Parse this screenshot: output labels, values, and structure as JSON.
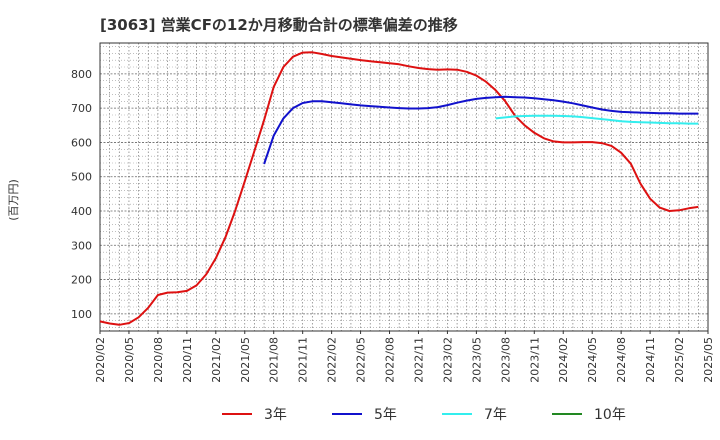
{
  "chart_data": {
    "type": "line",
    "title": "[3063]  営業CFの12か月移動合計の標準偏差の推移",
    "ylabel": "(百万円)",
    "xlabel": "",
    "ylim": [
      50,
      890
    ],
    "yticks": [
      100,
      200,
      300,
      400,
      500,
      600,
      700,
      800
    ],
    "x_tick_labels": [
      "2020/02",
      "2020/05",
      "2020/08",
      "2020/11",
      "2021/02",
      "2021/05",
      "2021/08",
      "2021/11",
      "2022/02",
      "2022/05",
      "2022/08",
      "2022/11",
      "2023/02",
      "2023/05",
      "2023/08",
      "2023/11",
      "2024/02",
      "2024/05",
      "2024/08",
      "2024/11",
      "2025/02",
      "2025/05"
    ],
    "x_range_months": [
      0,
      63
    ],
    "grid": true,
    "legend_position": "bottom",
    "series": [
      {
        "name": "3年",
        "color": "#dd1111",
        "points": [
          [
            0,
            78
          ],
          [
            1,
            72
          ],
          [
            2,
            68
          ],
          [
            3,
            73
          ],
          [
            4,
            90
          ],
          [
            5,
            118
          ],
          [
            6,
            155
          ],
          [
            7,
            162
          ],
          [
            8,
            163
          ],
          [
            9,
            167
          ],
          [
            10,
            183
          ],
          [
            11,
            215
          ],
          [
            12,
            262
          ],
          [
            13,
            324
          ],
          [
            14,
            400
          ],
          [
            15,
            487
          ],
          [
            16,
            575
          ],
          [
            17,
            665
          ],
          [
            18,
            762
          ],
          [
            19,
            820
          ],
          [
            20,
            850
          ],
          [
            21,
            862
          ],
          [
            22,
            863
          ],
          [
            23,
            858
          ],
          [
            24,
            852
          ],
          [
            25,
            848
          ],
          [
            26,
            844
          ],
          [
            27,
            840
          ],
          [
            28,
            837
          ],
          [
            29,
            834
          ],
          [
            30,
            831
          ],
          [
            31,
            828
          ],
          [
            32,
            822
          ],
          [
            33,
            817
          ],
          [
            34,
            814
          ],
          [
            35,
            812
          ],
          [
            36,
            813
          ],
          [
            37,
            812
          ],
          [
            38,
            806
          ],
          [
            39,
            795
          ],
          [
            40,
            777
          ],
          [
            41,
            752
          ],
          [
            42,
            720
          ],
          [
            43,
            678
          ],
          [
            44,
            650
          ],
          [
            45,
            628
          ],
          [
            46,
            612
          ],
          [
            47,
            603
          ],
          [
            48,
            600
          ],
          [
            49,
            600
          ],
          [
            50,
            601
          ],
          [
            51,
            601
          ],
          [
            52,
            598
          ],
          [
            53,
            590
          ],
          [
            54,
            570
          ],
          [
            55,
            538
          ],
          [
            56,
            480
          ],
          [
            57,
            436
          ],
          [
            58,
            410
          ],
          [
            59,
            400
          ],
          [
            60,
            402
          ],
          [
            61,
            408
          ],
          [
            62,
            412
          ]
        ]
      },
      {
        "name": "5年",
        "color": "#1111cc",
        "points": [
          [
            17,
            537
          ],
          [
            18,
            620
          ],
          [
            19,
            670
          ],
          [
            20,
            700
          ],
          [
            21,
            715
          ],
          [
            22,
            720
          ],
          [
            23,
            720
          ],
          [
            24,
            717
          ],
          [
            25,
            714
          ],
          [
            26,
            711
          ],
          [
            27,
            708
          ],
          [
            28,
            706
          ],
          [
            29,
            704
          ],
          [
            30,
            702
          ],
          [
            31,
            700
          ],
          [
            32,
            699
          ],
          [
            33,
            699
          ],
          [
            34,
            700
          ],
          [
            35,
            703
          ],
          [
            36,
            709
          ],
          [
            37,
            716
          ],
          [
            38,
            722
          ],
          [
            39,
            727
          ],
          [
            40,
            730
          ],
          [
            41,
            732
          ],
          [
            42,
            733
          ],
          [
            43,
            732
          ],
          [
            44,
            731
          ],
          [
            45,
            729
          ],
          [
            46,
            726
          ],
          [
            47,
            723
          ],
          [
            48,
            719
          ],
          [
            49,
            714
          ],
          [
            50,
            708
          ],
          [
            51,
            702
          ],
          [
            52,
            696
          ],
          [
            53,
            692
          ],
          [
            54,
            689
          ],
          [
            55,
            688
          ],
          [
            56,
            687
          ],
          [
            57,
            686
          ],
          [
            58,
            685
          ],
          [
            59,
            685
          ],
          [
            60,
            684
          ],
          [
            61,
            684
          ],
          [
            62,
            684
          ]
        ]
      },
      {
        "name": "7年",
        "color": "#33eeee",
        "points": [
          [
            41,
            670
          ],
          [
            42,
            673
          ],
          [
            43,
            676
          ],
          [
            44,
            677
          ],
          [
            45,
            678
          ],
          [
            46,
            678
          ],
          [
            47,
            678
          ],
          [
            48,
            677
          ],
          [
            49,
            676
          ],
          [
            50,
            674
          ],
          [
            51,
            671
          ],
          [
            52,
            668
          ],
          [
            53,
            665
          ],
          [
            54,
            662
          ],
          [
            55,
            660
          ],
          [
            56,
            659
          ],
          [
            57,
            658
          ],
          [
            58,
            657
          ],
          [
            59,
            656
          ],
          [
            60,
            656
          ],
          [
            61,
            655
          ],
          [
            62,
            655
          ]
        ]
      },
      {
        "name": "10年",
        "color": "#228822",
        "points": []
      }
    ]
  }
}
